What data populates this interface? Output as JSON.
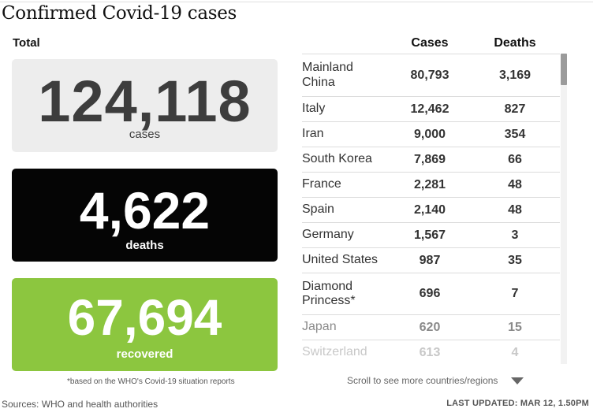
{
  "header": {
    "title": "Confirmed Covid-19 cases"
  },
  "totals": {
    "label": "Total",
    "cases": {
      "value": "124,118",
      "caption": "cases"
    },
    "deaths": {
      "value": "4,622",
      "caption": "deaths"
    },
    "recovered": {
      "value": "67,694",
      "caption": "recovered"
    },
    "footnote": "*based on the WHO's Covid-19 situation reports"
  },
  "colors": {
    "cases_box": "#ededed",
    "deaths_box": "#050505",
    "recovered_box": "#8cc63f"
  },
  "table": {
    "headers": {
      "cases": "Cases",
      "deaths": "Deaths"
    },
    "rows": [
      {
        "country": "Mainland China",
        "cases": "80,793",
        "deaths": "3,169"
      },
      {
        "country": "Italy",
        "cases": "12,462",
        "deaths": "827"
      },
      {
        "country": "Iran",
        "cases": "9,000",
        "deaths": "354"
      },
      {
        "country": "South Korea",
        "cases": "7,869",
        "deaths": "66"
      },
      {
        "country": "France",
        "cases": "2,281",
        "deaths": "48"
      },
      {
        "country": "Spain",
        "cases": "2,140",
        "deaths": "48"
      },
      {
        "country": "Germany",
        "cases": "1,567",
        "deaths": "3"
      },
      {
        "country": "United States",
        "cases": "987",
        "deaths": "35"
      },
      {
        "country": "Diamond Princess*",
        "cases": "696",
        "deaths": "7"
      },
      {
        "country": "Japan",
        "cases": "620",
        "deaths": "15"
      },
      {
        "country": "Switzerland",
        "cases": "613",
        "deaths": "4"
      }
    ],
    "scroll_hint": "Scroll to see more countries/regions",
    "scroll_icon": "chevron-down-icon"
  },
  "footer": {
    "sources": "Sources: WHO and health authorities",
    "last_updated": "LAST UPDATED: MAR 12, 1.50PM"
  }
}
